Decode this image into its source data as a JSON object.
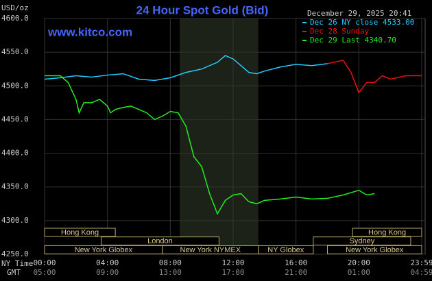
{
  "chart_data": {
    "type": "line",
    "title": "24 Hour Spot Gold (Bid)",
    "y_label": "USD/oz",
    "watermark": "www.kitco.com",
    "timestamp": "December 29, 2025 20:41",
    "x_axis_label": "NY Time",
    "x2_axis_label": "GMT",
    "xlim": [
      0,
      24
    ],
    "ylim": [
      4250,
      4600
    ],
    "xticks": [
      {
        "value": 0,
        "label": "00:00"
      },
      {
        "value": 4,
        "label": "04:00"
      },
      {
        "value": 8,
        "label": "08:00"
      },
      {
        "value": 12,
        "label": "12:00"
      },
      {
        "value": 16,
        "label": "16:00"
      },
      {
        "value": 20,
        "label": "20:00"
      },
      {
        "value": 24,
        "label": "23:59"
      }
    ],
    "x2ticks": [
      "05:00",
      "09:00",
      "13:00",
      "17:00",
      "21:00",
      "01:00",
      "04:59"
    ],
    "yticks": [
      {
        "value": 4250,
        "label": "4250.0"
      },
      {
        "value": 4300,
        "label": "4300.0"
      },
      {
        "value": 4350,
        "label": "4350.0"
      },
      {
        "value": 4400,
        "label": "4400.0"
      },
      {
        "value": 4450,
        "label": "4450.0"
      },
      {
        "value": 4500,
        "label": "4500.0"
      },
      {
        "value": 4550,
        "label": "4550.0"
      },
      {
        "value": 4600,
        "label": "4600.0"
      }
    ],
    "grid": true,
    "shade": [
      8.6,
      13.6
    ],
    "series": [
      {
        "name": "Dec 26 NY close 4533.00",
        "color": "#22ccff",
        "x": [
          0,
          1,
          2,
          3,
          4,
          5,
          6,
          7,
          8,
          9,
          10,
          11,
          11.5,
          12,
          12.5,
          13,
          13.5,
          14,
          15,
          16,
          17,
          18
        ],
        "values": [
          4510,
          4512,
          4515,
          4513,
          4516,
          4518,
          4510,
          4508,
          4512,
          4520,
          4525,
          4535,
          4545,
          4540,
          4530,
          4520,
          4518,
          4522,
          4528,
          4532,
          4530,
          4533
        ]
      },
      {
        "name": "Dec 28 Sunday",
        "color": "#ee1111",
        "x": [
          18,
          19,
          19.5,
          20,
          20.5,
          21,
          21.5,
          22,
          23,
          24
        ],
        "values": [
          4533,
          4538,
          4520,
          4490,
          4505,
          4505,
          4515,
          4510,
          4515,
          4515
        ]
      },
      {
        "name": "Dec 29 Last 4340.70",
        "color": "#22ee22",
        "x": [
          0,
          1,
          1.5,
          2,
          2.2,
          2.5,
          3,
          3.5,
          4,
          4.2,
          4.5,
          5,
          5.5,
          6,
          6.5,
          7,
          7.5,
          8,
          8.5,
          9,
          9.5,
          10,
          10.5,
          11,
          11.5,
          12,
          12.5,
          13,
          13.5,
          14,
          15,
          16,
          17,
          18,
          19,
          20,
          20.5,
          21
        ],
        "values": [
          4515,
          4515,
          4505,
          4480,
          4460,
          4475,
          4475,
          4480,
          4470,
          4460,
          4465,
          4468,
          4470,
          4465,
          4460,
          4450,
          4455,
          4462,
          4460,
          4440,
          4395,
          4380,
          4340,
          4310,
          4330,
          4338,
          4340,
          4328,
          4325,
          4330,
          4332,
          4335,
          4332,
          4333,
          4338,
          4345,
          4338,
          4340
        ]
      }
    ],
    "sessions": [
      [
        {
          "label": "Hong Kong",
          "start": 0,
          "end": 4.5
        },
        {
          "label": "Hong Kong",
          "start": 19.6,
          "end": 24
        }
      ],
      [
        {
          "label": "London",
          "start": 3.6,
          "end": 11.1
        },
        {
          "label": "Sydney",
          "start": 17.1,
          "end": 23.3
        }
      ],
      [
        {
          "label": "New York Globex",
          "start": 0,
          "end": 7.5
        },
        {
          "label": "New York NYMEX",
          "start": 7.5,
          "end": 13.6
        },
        {
          "label": "NY Globex",
          "start": 13.6,
          "end": 17.1
        },
        {
          "label": "New York Globex",
          "start": 18,
          "end": 24
        }
      ]
    ]
  }
}
